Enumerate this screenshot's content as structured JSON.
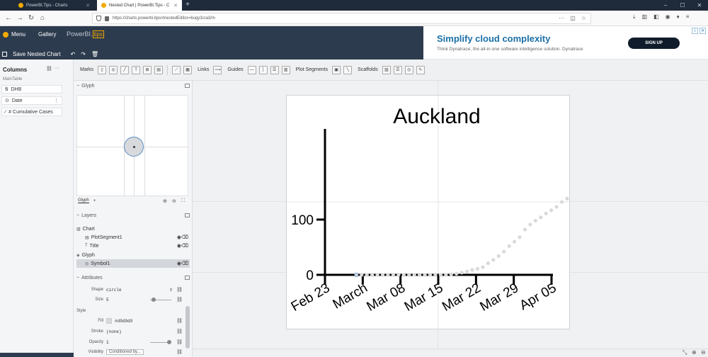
{
  "browser": {
    "tabs": [
      {
        "label": "PowerBI.Tips - Charts",
        "active": false
      },
      {
        "label": "Nested Chart | PowerBI.Tips - C",
        "active": true
      }
    ],
    "new_tab_icon": "plus-icon",
    "url": "https://charts.powerbi.tips/#nestedEditor=6uqy3cra3/m",
    "window_controls": [
      "minimize-icon",
      "maximize-icon",
      "close-icon"
    ]
  },
  "app": {
    "menu_label": "Menu",
    "gallery_label": "Gallery",
    "brand_text": "PowerBI.",
    "brand_tips": "tips",
    "save_label": "Save Nested Chart"
  },
  "ad": {
    "title": "Simplify cloud complexity",
    "body": "Think Dynatrace, the all-in-one software intelligence solution. Dynatrace",
    "button": "SIGN UP"
  },
  "toolbar": {
    "marks_label": "Marks",
    "links_label": "Links",
    "guides_label": "Guides",
    "plot_segments_label": "Plot Segments",
    "scaffolds_label": "Scaffolds"
  },
  "columns": {
    "header": "Columns",
    "table_name": "MainTable",
    "items": [
      {
        "label": "DHB",
        "icon": "text-icon"
      },
      {
        "label": "Date",
        "icon": "date-icon"
      },
      {
        "label": "# Cumulative Cases",
        "icon": "number-icon"
      }
    ]
  },
  "glyph_panel": {
    "header": "Glyph",
    "tab_label": "Glyph",
    "add_icon": "+"
  },
  "layers_panel": {
    "header": "Layers",
    "items": [
      {
        "label": "Chart",
        "icon": "chart-icon",
        "indent": 0,
        "selected": false,
        "controls": false
      },
      {
        "label": "PlotSegment1",
        "icon": "plot-segment-icon",
        "indent": 1,
        "selected": false,
        "controls": true
      },
      {
        "label": "Title",
        "icon": "title-icon",
        "indent": 1,
        "selected": false,
        "controls": true
      },
      {
        "label": "Glyph",
        "icon": "glyph-icon",
        "indent": 0,
        "selected": false,
        "controls": false
      },
      {
        "label": "Symbol1",
        "icon": "symbol-icon",
        "indent": 1,
        "selected": true,
        "controls": true
      }
    ]
  },
  "attributes_panel": {
    "header": "Attributes",
    "shape_label": "Shape",
    "shape_value": "circle",
    "size_label": "Size",
    "size_value": "5",
    "style_label": "Style",
    "fill_label": "Fill",
    "fill_value": "#d9d9d9",
    "fill_color": "#d9d9d9",
    "stroke_label": "Stroke",
    "stroke_value": "(none)",
    "opacity_label": "Opacity",
    "opacity_value": "1",
    "visibility_label": "Visibility",
    "visibility_value": "Conditioned by..."
  },
  "chart_data": {
    "type": "scatter",
    "title": "Auckland",
    "xlabel": "",
    "ylabel": "",
    "x_ticks": [
      "Feb 23",
      "March",
      "Mar 08",
      "Mar 15",
      "Mar 22",
      "Mar 29",
      "Apr 05"
    ],
    "y_ticks": [
      "0",
      "100"
    ],
    "ylim": [
      0,
      155
    ],
    "grid": false,
    "point_color": "#d9d9d9",
    "points": [
      {
        "x": "Feb 26",
        "y": 0
      },
      {
        "x": "Feb 27",
        "y": 0
      },
      {
        "x": "Feb 28",
        "y": 0
      },
      {
        "x": "Feb 29",
        "y": 0
      },
      {
        "x": "Mar 01",
        "y": 0
      },
      {
        "x": "Mar 02",
        "y": 0
      },
      {
        "x": "Mar 03",
        "y": 0
      },
      {
        "x": "Mar 04",
        "y": 0
      },
      {
        "x": "Mar 05",
        "y": 0
      },
      {
        "x": "Mar 06",
        "y": 0
      },
      {
        "x": "Mar 07",
        "y": 0
      },
      {
        "x": "Mar 08",
        "y": 0
      },
      {
        "x": "Mar 09",
        "y": 0
      },
      {
        "x": "Mar 10",
        "y": 0
      },
      {
        "x": "Mar 11",
        "y": 0
      },
      {
        "x": "Mar 12",
        "y": 0
      },
      {
        "x": "Mar 13",
        "y": 0
      },
      {
        "x": "Mar 14",
        "y": 0
      },
      {
        "x": "Mar 15",
        "y": 1
      },
      {
        "x": "Mar 16",
        "y": 2
      },
      {
        "x": "Mar 17",
        "y": 4
      },
      {
        "x": "Mar 18",
        "y": 6
      },
      {
        "x": "Mar 19",
        "y": 9
      },
      {
        "x": "Mar 20",
        "y": 11
      },
      {
        "x": "Mar 21",
        "y": 14
      },
      {
        "x": "Mar 22",
        "y": 21
      },
      {
        "x": "Mar 23",
        "y": 27
      },
      {
        "x": "Mar 24",
        "y": 34
      },
      {
        "x": "Mar 25",
        "y": 42
      },
      {
        "x": "Mar 26",
        "y": 52
      },
      {
        "x": "Mar 27",
        "y": 60
      },
      {
        "x": "Mar 28",
        "y": 68
      },
      {
        "x": "Mar 29",
        "y": 82
      },
      {
        "x": "Mar 30",
        "y": 91
      },
      {
        "x": "Mar 31",
        "y": 98
      },
      {
        "x": "Apr 01",
        "y": 104
      },
      {
        "x": "Apr 02",
        "y": 111
      },
      {
        "x": "Apr 03",
        "y": 117
      },
      {
        "x": "Apr 04",
        "y": 123
      },
      {
        "x": "Apr 05",
        "y": 132
      },
      {
        "x": "Apr 06",
        "y": 138
      },
      {
        "x": "Apr 07",
        "y": 146
      }
    ]
  }
}
